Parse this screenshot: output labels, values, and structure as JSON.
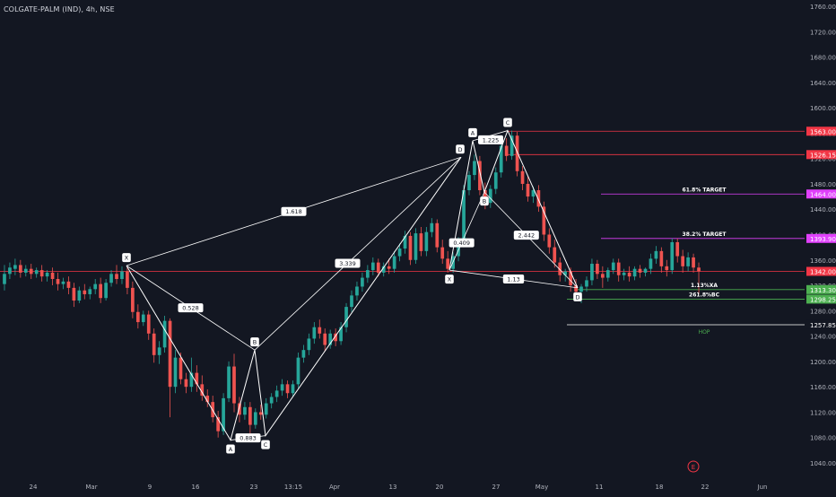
{
  "header": {
    "symbol_line": "COLGATE-PALM (IND), 4h, NSE"
  },
  "colors": {
    "background": "#131722",
    "grid": "#1e222d",
    "axis_text": "#b2b5be",
    "bull": "#26a69a",
    "bear": "#ef5350",
    "pattern_line": "#ffffff",
    "target_magenta": "#e040fb",
    "stop_red": "#f23645",
    "green_level": "#4caf50",
    "white_level": "#ffffff"
  },
  "chart_data": {
    "type": "candlestick",
    "title": "COLGATE-PALM (IND), 4h, NSE",
    "x_tick_labels": [
      "24",
      "Mar",
      "9",
      "16",
      "23",
      "13:15",
      "Apr",
      "13",
      "20",
      "27",
      "May",
      "11",
      "18",
      "22",
      "Jun"
    ],
    "y_tick_labels": [
      "1760.00",
      "1720.00",
      "1680.00",
      "1640.00",
      "1600.00",
      "1560.00",
      "1520.00",
      "1480.00",
      "1440.00",
      "1400.00",
      "1360.00",
      "1320.00",
      "1280.00",
      "1240.00",
      "1200.00",
      "1160.00",
      "1120.00",
      "1080.00",
      "1040.00"
    ],
    "ylim": [
      1028,
      1766
    ],
    "grid": false,
    "price_levels": [
      {
        "price": 1563.0,
        "label": "1563.00",
        "color": "#f23645",
        "text": ""
      },
      {
        "price": 1526.15,
        "label": "1526.15",
        "color": "#f23645",
        "text": ""
      },
      {
        "price": 1464.0,
        "label": "1464.00",
        "color": "#e040fb",
        "text": "61.8% TARGET"
      },
      {
        "price": 1393.9,
        "label": "1393.90",
        "color": "#e040fb",
        "text": "38.2% TARGET"
      },
      {
        "price": 1342.0,
        "label": "1342.00",
        "color": "#f23645",
        "text": ""
      },
      {
        "price": 1313.3,
        "label": "1313.30",
        "color": "#4caf50",
        "text": "1.13%XA"
      },
      {
        "price": 1298.25,
        "label": "1298.25",
        "color": "#4caf50",
        "text": "261.8%BC"
      },
      {
        "price": 1257.85,
        "label": "1257.85",
        "color": "#ffffff",
        "text": "HOP"
      }
    ],
    "patterns": [
      {
        "name": "first",
        "points": [
          {
            "label": "X",
            "x": "Mar 5",
            "price": 1351
          },
          {
            "label": "A",
            "x": "Mar 20",
            "price": 1076
          },
          {
            "label": "B",
            "x": "Mar 23",
            "price": 1218
          },
          {
            "label": "C",
            "x": "Mar 24",
            "price": 1083
          },
          {
            "label": "D",
            "x": "Apr 23",
            "price": 1522
          }
        ],
        "ratios": [
          {
            "text": "0.528",
            "between": "X-B"
          },
          {
            "text": "0.883",
            "between": "A-C"
          },
          {
            "text": "3.339",
            "between": "B-D"
          },
          {
            "text": "1.618",
            "between": "X-D"
          }
        ]
      },
      {
        "name": "second",
        "points": [
          {
            "label": "X",
            "x": "Apr 20",
            "price": 1344
          },
          {
            "label": "A",
            "x": "Apr 25",
            "price": 1548
          },
          {
            "label": "B",
            "x": "Apr 26",
            "price": 1467
          },
          {
            "label": "C",
            "x": "Apr 28",
            "price": 1564
          },
          {
            "label": "D",
            "x": "May 8",
            "price": 1316
          }
        ],
        "ratios": [
          {
            "text": "1.225",
            "between": "D1-C"
          },
          {
            "text": "0.409",
            "between": "X-B"
          },
          {
            "text": "2.442",
            "between": "B-D"
          },
          {
            "text": "1.13",
            "between": "X-D"
          }
        ]
      }
    ],
    "candles": [
      {
        "t": 1,
        "o": 1322,
        "h": 1352,
        "c": 1338,
        "l": 1312
      },
      {
        "t": 2,
        "o": 1338,
        "h": 1356,
        "c": 1348,
        "l": 1330
      },
      {
        "t": 3,
        "o": 1346,
        "h": 1362,
        "c": 1352,
        "l": 1336
      },
      {
        "t": 4,
        "o": 1352,
        "h": 1360,
        "c": 1340,
        "l": 1332
      },
      {
        "t": 5,
        "o": 1340,
        "h": 1352,
        "c": 1346,
        "l": 1334
      },
      {
        "t": 6,
        "o": 1346,
        "h": 1354,
        "c": 1338,
        "l": 1330
      },
      {
        "t": 7,
        "o": 1338,
        "h": 1348,
        "c": 1344,
        "l": 1332
      },
      {
        "t": 8,
        "o": 1344,
        "h": 1352,
        "c": 1334,
        "l": 1326
      },
      {
        "t": 9,
        "o": 1334,
        "h": 1344,
        "c": 1340,
        "l": 1326
      },
      {
        "t": 10,
        "o": 1340,
        "h": 1348,
        "c": 1330,
        "l": 1320
      },
      {
        "t": 11,
        "o": 1330,
        "h": 1340,
        "c": 1322,
        "l": 1312
      },
      {
        "t": 12,
        "o": 1322,
        "h": 1332,
        "c": 1326,
        "l": 1314
      },
      {
        "t": 13,
        "o": 1326,
        "h": 1334,
        "c": 1316,
        "l": 1306
      },
      {
        "t": 14,
        "o": 1316,
        "h": 1324,
        "c": 1296,
        "l": 1286
      },
      {
        "t": 15,
        "o": 1296,
        "h": 1318,
        "c": 1312,
        "l": 1292
      },
      {
        "t": 16,
        "o": 1312,
        "h": 1322,
        "c": 1306,
        "l": 1298
      },
      {
        "t": 17,
        "o": 1306,
        "h": 1318,
        "c": 1314,
        "l": 1298
      },
      {
        "t": 18,
        "o": 1314,
        "h": 1330,
        "c": 1322,
        "l": 1306
      },
      {
        "t": 19,
        "o": 1322,
        "h": 1332,
        "c": 1300,
        "l": 1292
      },
      {
        "t": 20,
        "o": 1300,
        "h": 1330,
        "c": 1324,
        "l": 1296
      },
      {
        "t": 21,
        "o": 1324,
        "h": 1344,
        "c": 1338,
        "l": 1318
      },
      {
        "t": 22,
        "o": 1338,
        "h": 1352,
        "c": 1330,
        "l": 1322
      },
      {
        "t": 23,
        "o": 1330,
        "h": 1350,
        "c": 1342,
        "l": 1322
      },
      {
        "t": 24,
        "o": 1342,
        "h": 1350,
        "c": 1316,
        "l": 1306
      },
      {
        "t": 25,
        "o": 1316,
        "h": 1326,
        "c": 1278,
        "l": 1268
      },
      {
        "t": 26,
        "o": 1278,
        "h": 1290,
        "c": 1262,
        "l": 1252
      },
      {
        "t": 27,
        "o": 1262,
        "h": 1280,
        "c": 1274,
        "l": 1256
      },
      {
        "t": 28,
        "o": 1274,
        "h": 1280,
        "c": 1244,
        "l": 1234
      },
      {
        "t": 29,
        "o": 1244,
        "h": 1252,
        "c": 1210,
        "l": 1198
      },
      {
        "t": 30,
        "o": 1210,
        "h": 1232,
        "c": 1222,
        "l": 1196
      },
      {
        "t": 31,
        "o": 1222,
        "h": 1272,
        "c": 1264,
        "l": 1214
      },
      {
        "t": 32,
        "o": 1264,
        "h": 1268,
        "c": 1160,
        "l": 1112
      },
      {
        "t": 33,
        "o": 1160,
        "h": 1218,
        "c": 1206,
        "l": 1150
      },
      {
        "t": 34,
        "o": 1206,
        "h": 1214,
        "c": 1172,
        "l": 1164
      },
      {
        "t": 35,
        "o": 1172,
        "h": 1182,
        "c": 1160,
        "l": 1150
      },
      {
        "t": 36,
        "o": 1160,
        "h": 1206,
        "c": 1182,
        "l": 1152
      },
      {
        "t": 37,
        "o": 1182,
        "h": 1194,
        "c": 1164,
        "l": 1152
      },
      {
        "t": 38,
        "o": 1164,
        "h": 1178,
        "c": 1146,
        "l": 1138
      },
      {
        "t": 39,
        "o": 1146,
        "h": 1156,
        "c": 1136,
        "l": 1128
      },
      {
        "t": 40,
        "o": 1136,
        "h": 1146,
        "c": 1112,
        "l": 1104
      },
      {
        "t": 41,
        "o": 1112,
        "h": 1122,
        "c": 1090,
        "l": 1080
      },
      {
        "t": 42,
        "o": 1090,
        "h": 1150,
        "c": 1142,
        "l": 1084
      },
      {
        "t": 43,
        "o": 1142,
        "h": 1200,
        "c": 1192,
        "l": 1136
      },
      {
        "t": 44,
        "o": 1192,
        "h": 1212,
        "c": 1134,
        "l": 1120
      },
      {
        "t": 45,
        "o": 1134,
        "h": 1144,
        "c": 1116,
        "l": 1104
      },
      {
        "t": 46,
        "o": 1116,
        "h": 1136,
        "c": 1128,
        "l": 1108
      },
      {
        "t": 47,
        "o": 1128,
        "h": 1136,
        "c": 1100,
        "l": 1086
      },
      {
        "t": 48,
        "o": 1100,
        "h": 1126,
        "c": 1120,
        "l": 1094
      },
      {
        "t": 49,
        "o": 1120,
        "h": 1132,
        "c": 1116,
        "l": 1108
      },
      {
        "t": 50,
        "o": 1116,
        "h": 1142,
        "c": 1134,
        "l": 1110
      },
      {
        "t": 51,
        "o": 1134,
        "h": 1150,
        "c": 1144,
        "l": 1126
      },
      {
        "t": 52,
        "o": 1144,
        "h": 1162,
        "c": 1154,
        "l": 1136
      },
      {
        "t": 53,
        "o": 1154,
        "h": 1172,
        "c": 1164,
        "l": 1146
      },
      {
        "t": 54,
        "o": 1164,
        "h": 1170,
        "c": 1150,
        "l": 1142
      },
      {
        "t": 55,
        "o": 1150,
        "h": 1170,
        "c": 1164,
        "l": 1144
      },
      {
        "t": 56,
        "o": 1164,
        "h": 1214,
        "c": 1206,
        "l": 1158
      },
      {
        "t": 57,
        "o": 1206,
        "h": 1226,
        "c": 1218,
        "l": 1198
      },
      {
        "t": 58,
        "o": 1218,
        "h": 1244,
        "c": 1236,
        "l": 1210
      },
      {
        "t": 59,
        "o": 1236,
        "h": 1262,
        "c": 1254,
        "l": 1228
      },
      {
        "t": 60,
        "o": 1254,
        "h": 1266,
        "c": 1244,
        "l": 1236
      },
      {
        "t": 61,
        "o": 1244,
        "h": 1252,
        "c": 1226,
        "l": 1216
      },
      {
        "t": 62,
        "o": 1226,
        "h": 1250,
        "c": 1244,
        "l": 1220
      },
      {
        "t": 63,
        "o": 1244,
        "h": 1252,
        "c": 1232,
        "l": 1224
      },
      {
        "t": 64,
        "o": 1232,
        "h": 1262,
        "c": 1254,
        "l": 1226
      },
      {
        "t": 65,
        "o": 1254,
        "h": 1292,
        "c": 1286,
        "l": 1246
      },
      {
        "t": 66,
        "o": 1286,
        "h": 1312,
        "c": 1304,
        "l": 1278
      },
      {
        "t": 67,
        "o": 1304,
        "h": 1326,
        "c": 1318,
        "l": 1296
      },
      {
        "t": 68,
        "o": 1318,
        "h": 1340,
        "c": 1332,
        "l": 1310
      },
      {
        "t": 69,
        "o": 1332,
        "h": 1352,
        "c": 1344,
        "l": 1324
      },
      {
        "t": 70,
        "o": 1344,
        "h": 1364,
        "c": 1356,
        "l": 1336
      },
      {
        "t": 71,
        "o": 1356,
        "h": 1362,
        "c": 1340,
        "l": 1334
      },
      {
        "t": 72,
        "o": 1340,
        "h": 1356,
        "c": 1350,
        "l": 1334
      },
      {
        "t": 73,
        "o": 1350,
        "h": 1362,
        "c": 1346,
        "l": 1338
      },
      {
        "t": 74,
        "o": 1346,
        "h": 1374,
        "c": 1366,
        "l": 1340
      },
      {
        "t": 75,
        "o": 1366,
        "h": 1386,
        "c": 1378,
        "l": 1358
      },
      {
        "t": 76,
        "o": 1378,
        "h": 1406,
        "c": 1398,
        "l": 1370
      },
      {
        "t": 77,
        "o": 1398,
        "h": 1404,
        "c": 1360,
        "l": 1352
      },
      {
        "t": 78,
        "o": 1360,
        "h": 1410,
        "c": 1402,
        "l": 1354
      },
      {
        "t": 79,
        "o": 1402,
        "h": 1412,
        "c": 1374,
        "l": 1366
      },
      {
        "t": 80,
        "o": 1374,
        "h": 1412,
        "c": 1404,
        "l": 1366
      },
      {
        "t": 81,
        "o": 1404,
        "h": 1426,
        "c": 1418,
        "l": 1396
      },
      {
        "t": 82,
        "o": 1418,
        "h": 1424,
        "c": 1380,
        "l": 1372
      },
      {
        "t": 83,
        "o": 1380,
        "h": 1392,
        "c": 1362,
        "l": 1354
      },
      {
        "t": 84,
        "o": 1362,
        "h": 1374,
        "c": 1346,
        "l": 1340
      },
      {
        "t": 85,
        "o": 1346,
        "h": 1372,
        "c": 1366,
        "l": 1340
      },
      {
        "t": 86,
        "o": 1366,
        "h": 1396,
        "c": 1388,
        "l": 1358
      },
      {
        "t": 87,
        "o": 1388,
        "h": 1478,
        "c": 1470,
        "l": 1380
      },
      {
        "t": 88,
        "o": 1470,
        "h": 1500,
        "c": 1494,
        "l": 1462
      },
      {
        "t": 89,
        "o": 1494,
        "h": 1526,
        "c": 1516,
        "l": 1486
      },
      {
        "t": 90,
        "o": 1516,
        "h": 1524,
        "c": 1470,
        "l": 1462
      },
      {
        "t": 91,
        "o": 1470,
        "h": 1482,
        "c": 1450,
        "l": 1440
      },
      {
        "t": 92,
        "o": 1450,
        "h": 1478,
        "c": 1472,
        "l": 1442
      },
      {
        "t": 93,
        "o": 1472,
        "h": 1506,
        "c": 1498,
        "l": 1464
      },
      {
        "t": 94,
        "o": 1498,
        "h": 1548,
        "c": 1540,
        "l": 1490
      },
      {
        "t": 95,
        "o": 1540,
        "h": 1552,
        "c": 1524,
        "l": 1516
      },
      {
        "t": 96,
        "o": 1524,
        "h": 1564,
        "c": 1556,
        "l": 1518
      },
      {
        "t": 97,
        "o": 1556,
        "h": 1562,
        "c": 1500,
        "l": 1492
      },
      {
        "t": 98,
        "o": 1500,
        "h": 1508,
        "c": 1480,
        "l": 1470
      },
      {
        "t": 99,
        "o": 1480,
        "h": 1492,
        "c": 1460,
        "l": 1452
      },
      {
        "t": 100,
        "o": 1460,
        "h": 1476,
        "c": 1470,
        "l": 1450
      },
      {
        "t": 101,
        "o": 1470,
        "h": 1478,
        "c": 1444,
        "l": 1436
      },
      {
        "t": 102,
        "o": 1444,
        "h": 1452,
        "c": 1400,
        "l": 1390
      },
      {
        "t": 103,
        "o": 1400,
        "h": 1410,
        "c": 1380,
        "l": 1370
      },
      {
        "t": 104,
        "o": 1380,
        "h": 1392,
        "c": 1356,
        "l": 1348
      },
      {
        "t": 105,
        "o": 1356,
        "h": 1364,
        "c": 1336,
        "l": 1326
      },
      {
        "t": 106,
        "o": 1336,
        "h": 1346,
        "c": 1342,
        "l": 1326
      },
      {
        "t": 107,
        "o": 1342,
        "h": 1348,
        "c": 1320,
        "l": 1310
      },
      {
        "t": 108,
        "o": 1320,
        "h": 1330,
        "c": 1310,
        "l": 1300
      },
      {
        "t": 109,
        "o": 1310,
        "h": 1322,
        "c": 1318,
        "l": 1292
      },
      {
        "t": 110,
        "o": 1318,
        "h": 1334,
        "c": 1328,
        "l": 1310
      },
      {
        "t": 111,
        "o": 1328,
        "h": 1362,
        "c": 1354,
        "l": 1320
      },
      {
        "t": 112,
        "o": 1354,
        "h": 1360,
        "c": 1338,
        "l": 1330
      },
      {
        "t": 113,
        "o": 1338,
        "h": 1350,
        "c": 1332,
        "l": 1316
      },
      {
        "t": 114,
        "o": 1332,
        "h": 1348,
        "c": 1344,
        "l": 1326
      },
      {
        "t": 115,
        "o": 1344,
        "h": 1362,
        "c": 1356,
        "l": 1338
      },
      {
        "t": 116,
        "o": 1356,
        "h": 1362,
        "c": 1336,
        "l": 1326
      },
      {
        "t": 117,
        "o": 1336,
        "h": 1346,
        "c": 1340,
        "l": 1328
      },
      {
        "t": 118,
        "o": 1340,
        "h": 1350,
        "c": 1334,
        "l": 1326
      },
      {
        "t": 119,
        "o": 1334,
        "h": 1350,
        "c": 1346,
        "l": 1328
      },
      {
        "t": 120,
        "o": 1346,
        "h": 1352,
        "c": 1340,
        "l": 1332
      },
      {
        "t": 121,
        "o": 1340,
        "h": 1348,
        "c": 1346,
        "l": 1334
      },
      {
        "t": 122,
        "o": 1346,
        "h": 1370,
        "c": 1362,
        "l": 1338
      },
      {
        "t": 123,
        "o": 1362,
        "h": 1382,
        "c": 1374,
        "l": 1354
      },
      {
        "t": 124,
        "o": 1374,
        "h": 1380,
        "c": 1350,
        "l": 1340
      },
      {
        "t": 125,
        "o": 1350,
        "h": 1360,
        "c": 1344,
        "l": 1334
      },
      {
        "t": 126,
        "o": 1344,
        "h": 1394,
        "c": 1388,
        "l": 1338
      },
      {
        "t": 127,
        "o": 1388,
        "h": 1394,
        "c": 1366,
        "l": 1356
      },
      {
        "t": 128,
        "o": 1366,
        "h": 1376,
        "c": 1350,
        "l": 1340
      },
      {
        "t": 129,
        "o": 1350,
        "h": 1372,
        "c": 1364,
        "l": 1342
      },
      {
        "t": 130,
        "o": 1364,
        "h": 1370,
        "c": 1348,
        "l": 1340
      },
      {
        "t": 131,
        "o": 1348,
        "h": 1356,
        "c": 1342,
        "l": 1306
      }
    ]
  },
  "footer": {
    "event_badge": "E"
  }
}
